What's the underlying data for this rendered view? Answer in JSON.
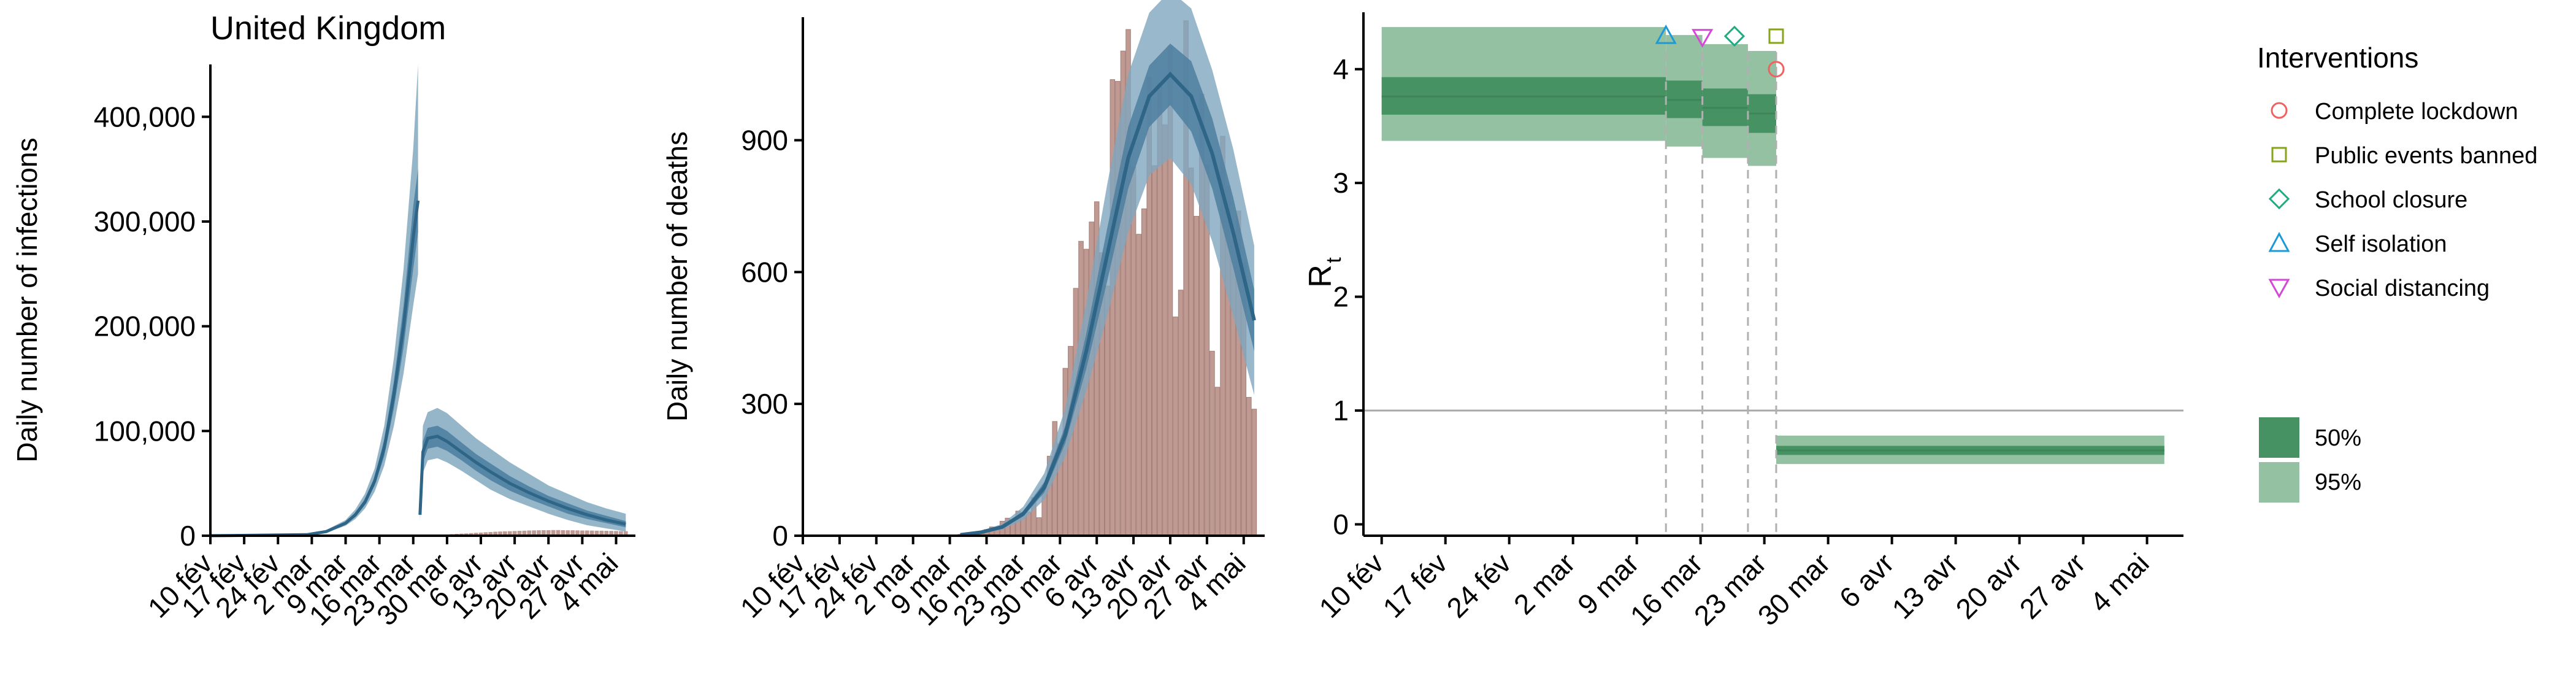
{
  "page": {
    "title": "United Kingdom"
  },
  "colors": {
    "infections": "#4a7ea0",
    "infections_light": "#8fb2c6",
    "deaths_band95": "#7fa6bf",
    "deaths_band50": "#4e7f9f",
    "deaths_line": "#2f6586",
    "bars": "#bf9a93",
    "bar_edge": "#a57d76",
    "rt50": "#469262",
    "rt95": "#93c1a2",
    "lockdown": "#f0625f",
    "public_events": "#86a51b",
    "school": "#1dab7f",
    "self_isolation": "#1c9ad8",
    "social_distancing": "#d447d7"
  },
  "chart_data": [
    {
      "type": "area",
      "title": "United Kingdom",
      "xlabel": "",
      "ylabel": "Daily number of infections",
      "ylim": [
        0,
        450000
      ],
      "yticks": [
        0,
        100000,
        200000,
        300000,
        400000
      ],
      "ytick_labels": [
        "0",
        "100,000",
        "200,000",
        "300,000",
        "400,000"
      ],
      "xlim": [
        0,
        88
      ],
      "xtick_days": [
        0,
        7,
        14,
        21,
        28,
        35,
        42,
        49,
        56,
        63,
        70,
        77,
        84
      ],
      "xtick_labels": [
        "10 fév",
        "17 fév",
        "24 fév",
        "2 mar",
        "9 mar",
        "16 mar",
        "23 mar",
        "30 mar",
        "6 avr",
        "13 avr",
        "20 avr",
        "27 avr",
        "4 mai"
      ],
      "series": [
        {
          "x": [
            0,
            20,
            24,
            28,
            30,
            32,
            34,
            36,
            38,
            40,
            42,
            43,
            43.4,
            44,
            45,
            47,
            49,
            52,
            55,
            58,
            62,
            66,
            70,
            74,
            78,
            82,
            86
          ],
          "median": [
            0,
            1000,
            4000,
            12000,
            20000,
            32000,
            52000,
            84000,
            135000,
            200000,
            285000,
            320000,
            20000,
            80000,
            93000,
            95000,
            90000,
            80000,
            70000,
            61000,
            50000,
            41000,
            33000,
            26000,
            20000,
            15000,
            11000
          ],
          "lower50": [
            0,
            900,
            3500,
            11000,
            18000,
            30000,
            48000,
            76000,
            122000,
            180000,
            255000,
            290000,
            18000,
            70000,
            83000,
            85000,
            81000,
            72000,
            62000,
            53000,
            43000,
            35000,
            28000,
            21000,
            16000,
            12000,
            8000
          ],
          "upper50": [
            0,
            1100,
            4500,
            13000,
            22000,
            35000,
            56000,
            92000,
            148000,
            220000,
            315000,
            350000,
            22000,
            90000,
            103000,
            105000,
            100000,
            89000,
            78000,
            69000,
            57000,
            47000,
            38000,
            31000,
            24000,
            19000,
            14000
          ],
          "lower95": [
            0,
            800,
            3000,
            9500,
            16000,
            26000,
            42000,
            67000,
            105000,
            155000,
            220000,
            250000,
            15000,
            60000,
            72000,
            74000,
            70000,
            62000,
            53000,
            44000,
            35000,
            28000,
            21000,
            15000,
            10000,
            7000,
            4000
          ],
          "upper95": [
            0,
            1300,
            5500,
            15000,
            25000,
            40000,
            64000,
            105000,
            170000,
            255000,
            370000,
            450000,
            28000,
            105000,
            118000,
            122000,
            117000,
            105000,
            93000,
            83000,
            70000,
            59000,
            48000,
            40000,
            32000,
            26000,
            21000
          ]
        }
      ],
      "bars": {
        "x": [
          48,
          49,
          50,
          51,
          52,
          53,
          54,
          55,
          56,
          57,
          58,
          59,
          60,
          61,
          62,
          63,
          64,
          65,
          66,
          67,
          68,
          69,
          70,
          71,
          72,
          73,
          74,
          75,
          76,
          77,
          78,
          79,
          80,
          81,
          82,
          83,
          84,
          85,
          86
        ],
        "values": [
          1000,
          1200,
          1500,
          1800,
          2000,
          2200,
          2500,
          2800,
          3000,
          3300,
          3500,
          3800,
          4000,
          4200,
          4300,
          4500,
          4700,
          4800,
          5000,
          5100,
          5200,
          5300,
          5300,
          5400,
          5400,
          5300,
          5200,
          5200,
          5100,
          5000,
          5000,
          4900,
          4800,
          4800,
          4700,
          4600,
          4500,
          4400,
          4300
        ]
      }
    },
    {
      "type": "bar",
      "title": "",
      "xlabel": "",
      "ylabel": "Daily number of deaths",
      "ylim": [
        0,
        1180
      ],
      "yticks": [
        0,
        300,
        600,
        900
      ],
      "ytick_labels": [
        "0",
        "300",
        "600",
        "900"
      ],
      "xlim": [
        0,
        88
      ],
      "xtick_days": [
        0,
        7,
        14,
        21,
        28,
        35,
        42,
        49,
        56,
        63,
        70,
        77,
        84
      ],
      "xtick_labels": [
        "10 fév",
        "17 fév",
        "24 fév",
        "2 mar",
        "9 mar",
        "16 mar",
        "23 mar",
        "30 mar",
        "6 avr",
        "13 avr",
        "20 avr",
        "27 avr",
        "4 mai"
      ],
      "bars": {
        "x": [
          30,
          31,
          32,
          33,
          34,
          35,
          36,
          37,
          38,
          39,
          40,
          41,
          42,
          43,
          44,
          45,
          46,
          47,
          48,
          49,
          50,
          51,
          52,
          53,
          54,
          55,
          56,
          57,
          58,
          59,
          60,
          61,
          62,
          63,
          64,
          65,
          66,
          67,
          68,
          69,
          70,
          71,
          72,
          73,
          74,
          75,
          76,
          77,
          78,
          79,
          80,
          81,
          82,
          83,
          84,
          85,
          86
        ],
        "values": [
          3,
          2,
          5,
          8,
          10,
          14,
          20,
          16,
          33,
          40,
          33,
          56,
          48,
          54,
          87,
          41,
          115,
          181,
          260,
          209,
          381,
          431,
          563,
          670,
          652,
          714,
          760,
          644,
          568,
          1038,
          1034,
          1103,
          1152,
          839,
          686,
          744,
          1044,
          842,
          1029,
          935,
          1115,
          498,
          559,
          1172,
          837,
          727,
          1005,
          843,
          420,
          338,
          909,
          795,
          674,
          739,
          621,
          315,
          288
        ]
      },
      "series": [
        {
          "x": [
            30,
            34,
            38,
            42,
            46,
            50,
            54,
            58,
            62,
            66,
            70,
            74,
            78,
            82,
            86
          ],
          "median": [
            2,
            8,
            20,
            50,
            110,
            230,
            420,
            640,
            860,
            1000,
            1050,
            1000,
            870,
            690,
            490
          ],
          "lower50": [
            1,
            7,
            17,
            44,
            98,
            210,
            380,
            580,
            790,
            930,
            980,
            920,
            790,
            610,
            420
          ],
          "upper50": [
            3,
            9,
            23,
            56,
            122,
            250,
            460,
            700,
            930,
            1070,
            1120,
            1080,
            950,
            770,
            560
          ],
          "lower95": [
            1,
            5,
            14,
            36,
            82,
            180,
            330,
            500,
            690,
            820,
            860,
            800,
            670,
            500,
            320
          ],
          "upper95": [
            4,
            11,
            27,
            66,
            142,
            290,
            530,
            800,
            1050,
            1190,
            1240,
            1200,
            1060,
            880,
            660
          ]
        }
      ]
    },
    {
      "type": "area",
      "title": "",
      "xlabel": "",
      "ylabel": "R",
      "ylabel_sub": "t",
      "ylim": [
        -0.1,
        4.5
      ],
      "yticks": [
        0,
        1,
        2,
        3,
        4
      ],
      "ytick_labels": [
        "0",
        "1",
        "2",
        "3",
        "4"
      ],
      "xlim": [
        -2,
        88
      ],
      "xtick_days": [
        0,
        7,
        14,
        21,
        28,
        35,
        42,
        49,
        56,
        63,
        70,
        77,
        84
      ],
      "xtick_labels": [
        "10 fév",
        "17 fév",
        "24 fév",
        "2 mar",
        "9 mar",
        "16 mar",
        "23 mar",
        "30 mar",
        "6 avr",
        "13 avr",
        "20 avr",
        "27 avr",
        "4 mai"
      ],
      "reference_line": 1,
      "rt_segments": [
        {
          "x0": 0,
          "x1": 31.2,
          "median": 3.76,
          "lower50": 3.6,
          "upper50": 3.93,
          "lower95": 3.37,
          "upper95": 4.37
        },
        {
          "x0": 31.2,
          "x1": 35.2,
          "median": 3.73,
          "lower50": 3.57,
          "upper50": 3.9,
          "lower95": 3.32,
          "upper95": 4.3
        },
        {
          "x0": 35.2,
          "x1": 40.2,
          "median": 3.66,
          "lower50": 3.5,
          "upper50": 3.83,
          "lower95": 3.22,
          "upper95": 4.22
        },
        {
          "x0": 40.2,
          "x1": 43.3,
          "median": 3.61,
          "lower50": 3.44,
          "upper50": 3.78,
          "lower95": 3.15,
          "upper95": 4.16
        },
        {
          "x0": 43.3,
          "x1": 85.9,
          "median": 0.65,
          "lower50": 0.61,
          "upper50": 0.69,
          "lower95": 0.53,
          "upper95": 0.78
        }
      ],
      "interventions": [
        {
          "name": "Self isolation",
          "day": 31.2,
          "marker": "triangle-up"
        },
        {
          "name": "Social distancing",
          "day": 35.2,
          "marker": "triangle-down"
        },
        {
          "name": "School closure",
          "day": 40.2,
          "marker": "diamond"
        },
        {
          "name": "Public events banned",
          "day": 43.3,
          "marker": "square"
        },
        {
          "name": "Complete lockdown",
          "day": 43.3,
          "marker": "circle"
        }
      ]
    }
  ],
  "legend": {
    "title": "Interventions",
    "items": [
      {
        "label": "Complete lockdown",
        "marker": "circle",
        "color": "#f0625f"
      },
      {
        "label": "Public events banned",
        "marker": "square",
        "color": "#86a51b"
      },
      {
        "label": "School closure",
        "marker": "diamond",
        "color": "#1dab7f"
      },
      {
        "label": "Self isolation",
        "marker": "triangle-up",
        "color": "#1c9ad8"
      },
      {
        "label": "Social distancing",
        "marker": "triangle-down",
        "color": "#d447d7"
      }
    ],
    "bands": [
      {
        "label": "50%",
        "color": "#469262"
      },
      {
        "label": "95%",
        "color": "#93c1a2"
      }
    ]
  }
}
